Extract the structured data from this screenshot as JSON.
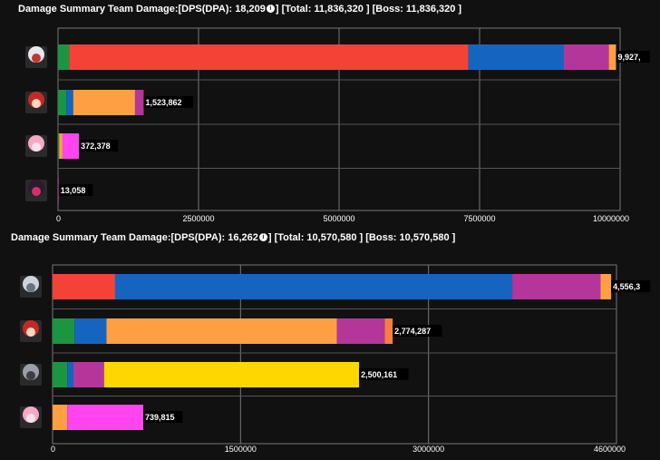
{
  "panels": [
    {
      "title": {
        "prefix": "Damage Summary Team Damage:[DPS(DPA): 18,209",
        "icon": "info-icon",
        "suffix": "] [Total: 11,836,320 ] [Boss: 11,836,320 ]"
      },
      "chart_data": {
        "type": "bar",
        "orientation": "horizontal",
        "stacked": true,
        "xlim": [
          0,
          10000000
        ],
        "xticks": [
          "0",
          "2500000",
          "5000000",
          "7500000",
          "10000000"
        ],
        "grid": true,
        "rows": [
          {
            "avatar": "character-avatar-white-hair-red-accent",
            "total_label": "9,927,",
            "segments": [
              {
                "color": "#1a9641",
                "value": 200000
              },
              {
                "color": "#f44336",
                "value": 7100000
              },
              {
                "color": "#1565c0",
                "value": 1700000
              },
              {
                "color": "#b5369a",
                "value": 800000
              },
              {
                "color": "#ff9f43",
                "value": 127000
              }
            ]
          },
          {
            "avatar": "character-avatar-red-hair",
            "total_label": "1,523,862",
            "segments": [
              {
                "color": "#1a9641",
                "value": 150000
              },
              {
                "color": "#1565c0",
                "value": 120000
              },
              {
                "color": "#ff9f43",
                "value": 1100000
              },
              {
                "color": "#b5369a",
                "value": 153862
              }
            ]
          },
          {
            "avatar": "character-avatar-pink-hair",
            "total_label": "372,378",
            "segments": [
              {
                "color": "#1a9641",
                "value": 20000
              },
              {
                "color": "#ff9f43",
                "value": 60000
              },
              {
                "color": "#ff44f0",
                "value": 292378
              }
            ]
          },
          {
            "avatar": "character-avatar-dark-hair",
            "total_label": "13,058",
            "segments": [
              {
                "color": "#b5369a",
                "value": 13058
              }
            ]
          }
        ]
      }
    },
    {
      "title": {
        "prefix": "Damage Summary Team Damage:[DPS(DPA): 16,262",
        "icon": "info-icon",
        "suffix": "] [Total: 10,570,580 ] [Boss: 10,570,580 ]"
      },
      "chart_data": {
        "type": "bar",
        "orientation": "horizontal",
        "stacked": true,
        "xlim": [
          0,
          4600000
        ],
        "xticks": [
          "0",
          "1500000",
          "3000000",
          "4600000"
        ],
        "grid": true,
        "rows": [
          {
            "avatar": "character-avatar-silver-hair",
            "total_label": "4,556,3",
            "segments": [
              {
                "color": "#f44336",
                "value": 510000
              },
              {
                "color": "#1565c0",
                "value": 3240000
              },
              {
                "color": "#b5369a",
                "value": 720000
              },
              {
                "color": "#ff9f43",
                "value": 86300
              }
            ]
          },
          {
            "avatar": "character-avatar-red-hair",
            "total_label": "2,774,287",
            "segments": [
              {
                "color": "#1a9641",
                "value": 180000
              },
              {
                "color": "#1565c0",
                "value": 260000
              },
              {
                "color": "#ff9f43",
                "value": 1880000
              },
              {
                "color": "#b5369a",
                "value": 390000
              },
              {
                "color": "#f77f3d",
                "value": 64287
              }
            ]
          },
          {
            "avatar": "character-avatar-gray-hair",
            "total_label": "2,500,161",
            "segments": [
              {
                "color": "#1a9641",
                "value": 120000
              },
              {
                "color": "#1565c0",
                "value": 50000
              },
              {
                "color": "#b5369a",
                "value": 250000
              },
              {
                "color": "#ffd700",
                "value": 2080161
              }
            ]
          },
          {
            "avatar": "character-avatar-pink-hair",
            "total_label": "739,815",
            "segments": [
              {
                "color": "#ff9f43",
                "value": 120000
              },
              {
                "color": "#ff44f0",
                "value": 619815
              }
            ]
          }
        ]
      }
    }
  ]
}
